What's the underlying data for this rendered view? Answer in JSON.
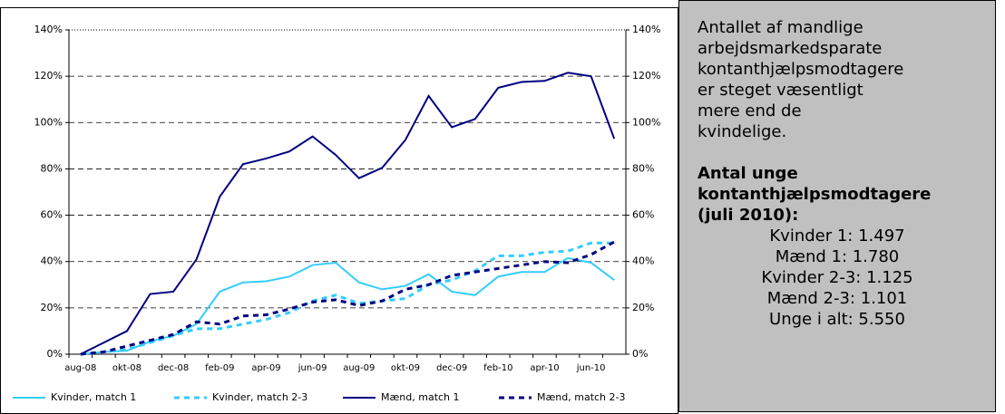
{
  "chart_data": {
    "type": "line",
    "categories": [
      "aug-08",
      null,
      "okt-08",
      null,
      "dec-08",
      null,
      "feb-09",
      null,
      "apr-09",
      null,
      "jun-09",
      null,
      "aug-09",
      null,
      "okt-09",
      null,
      "dec-09",
      null,
      "feb-10",
      null,
      "apr-10",
      null,
      "jun-10",
      null
    ],
    "series": [
      {
        "name": "Kvinder, match 1",
        "color": "#33ccff",
        "style": "solid",
        "values": [
          0,
          1,
          1.5,
          5.5,
          8,
          13,
          27,
          31,
          31.5,
          33.5,
          38.5,
          39.5,
          31,
          28,
          29.5,
          34.5,
          27,
          25.5,
          33.5,
          35.5,
          35.5,
          41.5,
          39.5,
          32
        ]
      },
      {
        "name": "Kvinder, match 2-3",
        "color": "#33ccff",
        "style": "dashed",
        "values": [
          0,
          1,
          2,
          5,
          8,
          11,
          11,
          13,
          15,
          18,
          23,
          25.5,
          22,
          23,
          24,
          30,
          32,
          36,
          42.5,
          42.5,
          44,
          44.5,
          48,
          48
        ]
      },
      {
        "name": "Mænd, match 1",
        "color": "#000080",
        "style": "solid",
        "values": [
          0,
          5,
          10,
          26,
          27,
          41,
          68,
          82,
          84.5,
          87.5,
          94,
          86,
          76,
          80.5,
          92.5,
          111.5,
          98,
          101.5,
          115,
          117.5,
          118,
          121.5,
          120,
          93
        ]
      },
      {
        "name": "Mænd, match 2-3",
        "color": "#000080",
        "style": "dashed",
        "values": [
          0,
          1,
          3.5,
          6,
          8.5,
          14,
          13,
          16.5,
          17,
          19.5,
          22.5,
          23.5,
          21,
          23,
          28,
          30,
          34,
          35.5,
          37,
          38.5,
          40,
          39.5,
          43,
          48.5
        ]
      }
    ],
    "ylim": [
      0,
      140
    ],
    "yticks": [
      {
        "value": 0,
        "label": "0%"
      },
      {
        "value": 20,
        "label": "20%"
      },
      {
        "value": 40,
        "label": "40%"
      },
      {
        "value": 60,
        "label": "60%"
      },
      {
        "value": 80,
        "label": "80%"
      },
      {
        "value": 100,
        "label": "100%"
      },
      {
        "value": 120,
        "label": "120%"
      },
      {
        "value": 140,
        "label": "140%"
      }
    ],
    "y2lim": [
      0,
      140
    ],
    "y2ticks": [
      {
        "value": 0,
        "label": "0%"
      },
      {
        "value": 20,
        "label": "20%"
      },
      {
        "value": 40,
        "label": "40%"
      },
      {
        "value": 60,
        "label": "60%"
      },
      {
        "value": 80,
        "label": "80%"
      },
      {
        "value": 100,
        "label": "100%"
      },
      {
        "value": 120,
        "label": "120%"
      },
      {
        "value": 140,
        "label": "140%"
      }
    ],
    "grid": true,
    "legend": "bottom"
  },
  "textbox": {
    "paragraph": [
      "Antallet af mandlige",
      "arbejdsmarkedsparate",
      "kontanthjælpsmodtagere",
      "er steget væsentligt",
      "mere end de",
      "kvindelige."
    ],
    "heading": [
      "Antal unge",
      "kontanthjælpsmodtagere",
      "(juli 2010):"
    ],
    "items": [
      "Kvinder 1: 1.497",
      "Mænd 1: 1.780",
      "Kvinder 2-3: 1.125",
      "Mænd 2-3: 1.101",
      "Unge i alt: 5.550"
    ]
  }
}
